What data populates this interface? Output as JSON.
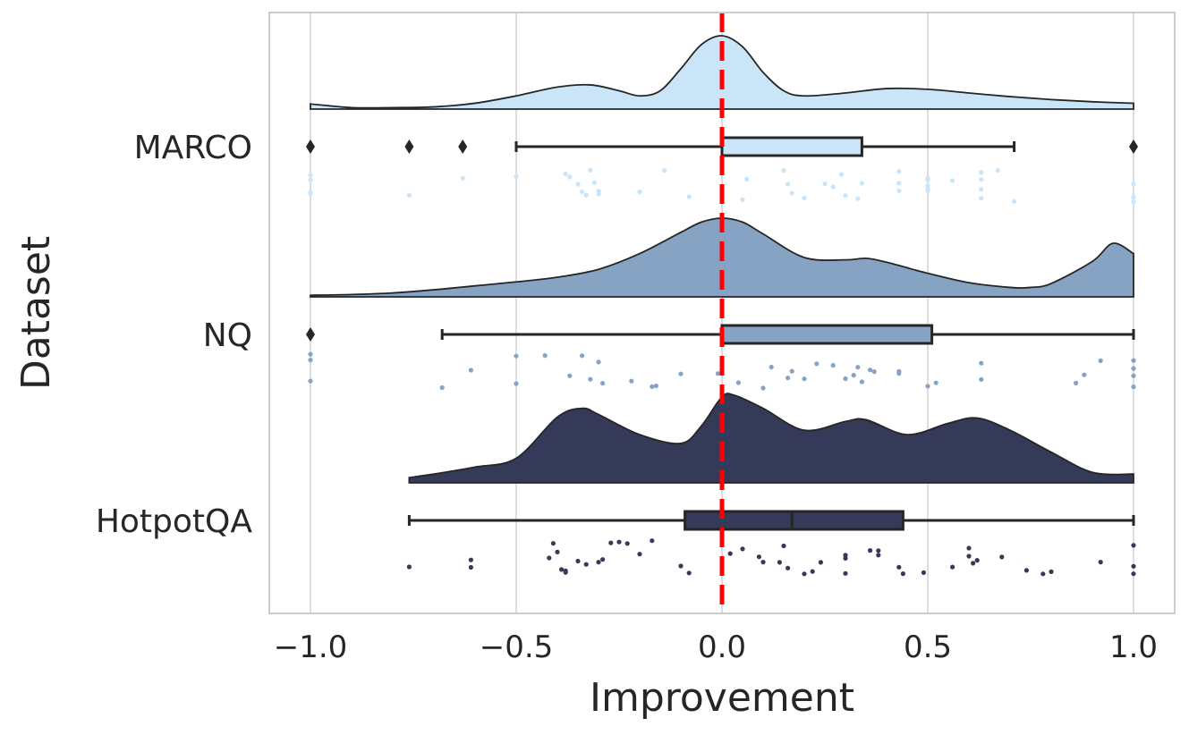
{
  "chart_data": {
    "type": "raincloud",
    "orientation": "horizontal",
    "title": "",
    "xlabel": "Improvement",
    "ylabel": "Dataset",
    "xlim": [
      -1.1,
      1.1
    ],
    "xticks": [
      -1.0,
      -0.5,
      0.0,
      0.5,
      1.0
    ],
    "xtick_labels": [
      "−1.0",
      "−0.5",
      "0.0",
      "0.5",
      "1.0"
    ],
    "grid": "vertical",
    "reference_line": {
      "x": 0.0,
      "color": "#ff0000",
      "style": "dashed"
    },
    "categories": [
      "MARCO",
      "NQ",
      "HotpotQA"
    ],
    "series": [
      {
        "name": "MARCO",
        "color": "#c9e5f7",
        "box": {
          "q1": 0.0,
          "median": 0.0,
          "q3": 0.34,
          "whisker_low": -0.5,
          "whisker_high": 0.71
        },
        "outliers": [
          -1.0,
          -0.76,
          -0.63,
          1.0
        ],
        "density": {
          "x": [
            -1.0,
            -0.9,
            -0.8,
            -0.7,
            -0.6,
            -0.5,
            -0.4,
            -0.32,
            -0.25,
            -0.2,
            -0.15,
            -0.1,
            -0.05,
            0.0,
            0.05,
            0.1,
            0.15,
            0.2,
            0.3,
            0.4,
            0.5,
            0.6,
            0.7,
            0.8,
            0.9,
            1.0
          ],
          "y": [
            0.07,
            0.02,
            0.02,
            0.03,
            0.08,
            0.18,
            0.3,
            0.33,
            0.25,
            0.18,
            0.25,
            0.55,
            0.88,
            1.0,
            0.85,
            0.5,
            0.25,
            0.18,
            0.22,
            0.28,
            0.27,
            0.22,
            0.17,
            0.13,
            0.1,
            0.08
          ]
        },
        "points": [
          -1.0,
          -1.0,
          -1.0,
          -1.0,
          -0.76,
          -0.63,
          -0.5,
          -0.38,
          -0.37,
          -0.35,
          -0.34,
          -0.33,
          -0.32,
          -0.31,
          -0.3,
          -0.3,
          -0.2,
          -0.14,
          -0.08,
          0.05,
          0.06,
          0.15,
          0.16,
          0.17,
          0.2,
          0.25,
          0.27,
          0.29,
          0.3,
          0.33,
          0.34,
          0.43,
          0.43,
          0.43,
          0.5,
          0.5,
          0.5,
          0.5,
          0.5,
          0.56,
          0.63,
          0.63,
          0.63,
          0.63,
          0.63,
          0.67,
          0.71,
          1.0,
          1.0,
          1.0
        ]
      },
      {
        "name": "NQ",
        "color": "#86a3c3",
        "box": {
          "q1": 0.0,
          "median": 0.0,
          "q3": 0.51,
          "whisker_low": -0.68,
          "whisker_high": 1.0
        },
        "outliers": [
          -1.0
        ],
        "density": {
          "x": [
            -1.0,
            -0.9,
            -0.8,
            -0.7,
            -0.6,
            -0.5,
            -0.4,
            -0.3,
            -0.2,
            -0.1,
            -0.05,
            0.0,
            0.05,
            0.1,
            0.2,
            0.3,
            0.35,
            0.4,
            0.5,
            0.6,
            0.7,
            0.75,
            0.8,
            0.9,
            0.95,
            1.0
          ],
          "y": [
            0.02,
            0.03,
            0.05,
            0.09,
            0.14,
            0.19,
            0.25,
            0.35,
            0.55,
            0.82,
            0.95,
            1.0,
            0.95,
            0.8,
            0.5,
            0.47,
            0.49,
            0.44,
            0.3,
            0.18,
            0.12,
            0.12,
            0.17,
            0.45,
            0.68,
            0.55
          ]
        },
        "points": [
          -1.0,
          -1.0,
          -1.0,
          -0.68,
          -0.61,
          -0.5,
          -0.5,
          -0.43,
          -0.37,
          -0.34,
          -0.32,
          -0.3,
          -0.29,
          -0.22,
          -0.17,
          -0.16,
          -0.1,
          -0.01,
          0.04,
          0.1,
          0.12,
          0.16,
          0.17,
          0.2,
          0.23,
          0.27,
          0.3,
          0.32,
          0.33,
          0.34,
          0.36,
          0.37,
          0.43,
          0.43,
          0.5,
          0.52,
          0.63,
          0.63,
          0.86,
          0.88,
          0.92,
          1.0,
          1.0,
          1.0,
          1.0
        ]
      },
      {
        "name": "HotpotQA",
        "color": "#353a59",
        "box": {
          "q1": -0.09,
          "median": 0.17,
          "q3": 0.44,
          "whisker_low": -0.76,
          "whisker_high": 1.0
        },
        "outliers": [],
        "density": {
          "x": [
            -0.76,
            -0.7,
            -0.6,
            -0.5,
            -0.4,
            -0.34,
            -0.3,
            -0.2,
            -0.1,
            -0.05,
            0.0,
            0.03,
            0.1,
            0.2,
            0.3,
            0.35,
            0.45,
            0.55,
            0.62,
            0.7,
            0.8,
            0.9,
            1.0
          ],
          "y": [
            0.06,
            0.1,
            0.18,
            0.28,
            0.75,
            0.85,
            0.78,
            0.55,
            0.45,
            0.65,
            0.98,
            1.0,
            0.85,
            0.6,
            0.7,
            0.72,
            0.55,
            0.68,
            0.74,
            0.6,
            0.35,
            0.12,
            0.1
          ]
        },
        "points": [
          -0.76,
          -0.61,
          -0.61,
          -0.42,
          -0.41,
          -0.4,
          -0.39,
          -0.38,
          -0.38,
          -0.35,
          -0.33,
          -0.3,
          -0.29,
          -0.27,
          -0.25,
          -0.23,
          -0.2,
          -0.17,
          -0.1,
          -0.08,
          0.02,
          0.05,
          0.09,
          0.1,
          0.14,
          0.15,
          0.16,
          0.2,
          0.22,
          0.24,
          0.3,
          0.3,
          0.3,
          0.36,
          0.38,
          0.38,
          0.43,
          0.44,
          0.49,
          0.56,
          0.6,
          0.6,
          0.61,
          0.62,
          0.68,
          0.74,
          0.78,
          0.8,
          0.92,
          1.0,
          1.0,
          1.0
        ]
      }
    ]
  }
}
